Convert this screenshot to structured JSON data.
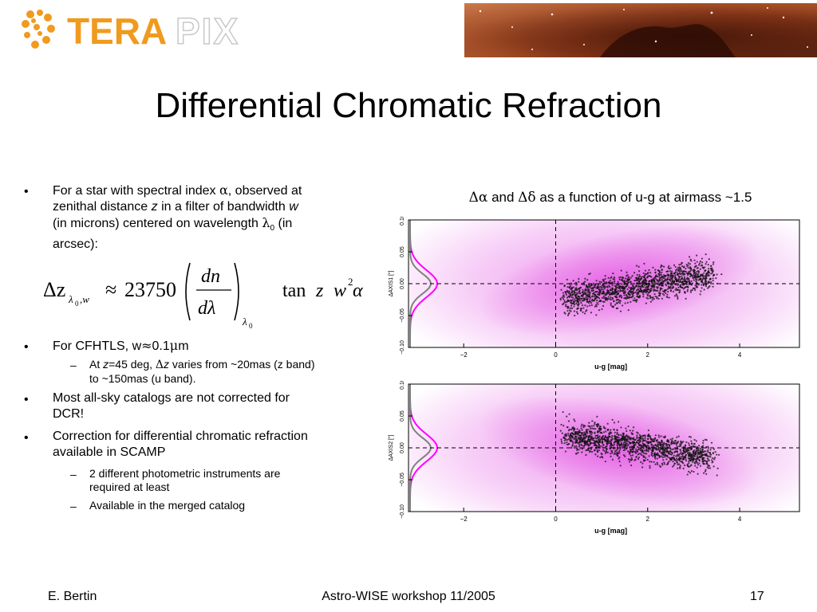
{
  "header": {
    "logo_text_a": "TERA",
    "logo_text_b": "PIX",
    "colors": {
      "orange": "#f09a1e",
      "gray_outline": "#bdbdbd"
    }
  },
  "slide": {
    "title": "Differential Chromatic Refraction"
  },
  "bullets": {
    "b1": {
      "line1_pre": "For a star with spectral index ",
      "alpha": "α",
      "line1_post": ", observed at",
      "line2_pre": "zenithal distance ",
      "z": "z",
      "line2_post": " in a filter of bandwidth ",
      "w": "w",
      "line3_pre": "(in microns) centered on wavelength ",
      "lambda": "λ",
      "sub0": "0",
      "line3_post": " (in",
      "line4": "arcsec):"
    },
    "equation": {
      "delta_z": "Δz",
      "sub_lambda": "λ",
      "sub_0": "0",
      "sub_w": ",w",
      "approx": "≈",
      "const": "23750",
      "dn": "dn",
      "dlambda": "dλ",
      "lambda0": "λ",
      "tan": "tan",
      "z": "z",
      "w": "w",
      "sq": "2",
      "alpha": "α"
    },
    "b2": {
      "pre": "For CFHTLS, w",
      "approx": "≈",
      "val": "0.1",
      "mu": "μ",
      "unit": "m"
    },
    "b2_sub": {
      "pre": "At ",
      "z": "z",
      "eq": "=45 deg, ",
      "delta": "Δ",
      "z2": "z",
      "post1": " varies from ~20mas (z band)",
      "line2": "to ~150mas (u band)."
    },
    "b3": {
      "line1": "Most all-sky catalogs are not corrected for",
      "line2": "DCR!"
    },
    "b4": {
      "line1": "Correction for differential chromatic refraction",
      "line2": "available in SCAMP"
    },
    "b4_subs": [
      {
        "line1": "2 different photometric instruments are",
        "line2": "required at least"
      },
      {
        "line1": "Available in the merged catalog"
      }
    ],
    "bullet_char": "•",
    "dash_char": "–"
  },
  "plots": {
    "caption": {
      "delta_alpha": "Δα",
      "and": " and ",
      "delta_delta": "Δδ",
      "rest": " as a function of u-g at airmass ~1.5"
    },
    "chart_data": [
      {
        "type": "scatter",
        "xlabel": "u-g [mag]",
        "ylabel": "ΔAXIS1 [\"]",
        "xlim": [
          -3.2,
          5.3
        ],
        "ylim": [
          -0.1,
          0.1
        ],
        "xticks": [
          "−2",
          "0",
          "2",
          "4"
        ],
        "yticks": [
          "0.10",
          "0.05",
          "0.00",
          "−0.05",
          "−0.10"
        ],
        "trend": "increasing",
        "colors": {
          "density": "#e040e0",
          "points": "#111111",
          "magenta_curve": "#ff00ff",
          "gray_curve": "#808080"
        }
      },
      {
        "type": "scatter",
        "xlabel": "u-g [mag]",
        "ylabel": "ΔAXIS2 [\"]",
        "xlim": [
          -3.2,
          5.3
        ],
        "ylim": [
          -0.1,
          0.1
        ],
        "xticks": [
          "−2",
          "0",
          "2",
          "4"
        ],
        "yticks": [
          "0.10",
          "0.05",
          "0.00",
          "−0.05",
          "−0.10"
        ],
        "trend": "decreasing",
        "colors": {
          "density": "#e040e0",
          "points": "#111111",
          "magenta_curve": "#ff00ff",
          "gray_curve": "#808080"
        }
      }
    ]
  },
  "footer": {
    "author": "E. Bertin",
    "event": "Astro-WISE workshop 11/2005",
    "page": "17"
  }
}
